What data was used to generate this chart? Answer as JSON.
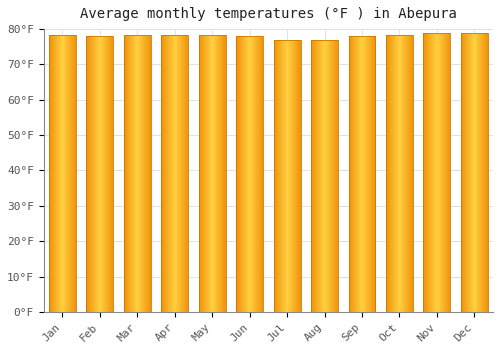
{
  "months": [
    "Jan",
    "Feb",
    "Mar",
    "Apr",
    "May",
    "Jun",
    "Jul",
    "Aug",
    "Sep",
    "Oct",
    "Nov",
    "Dec"
  ],
  "values": [
    78.4,
    78.1,
    78.4,
    78.4,
    78.4,
    77.9,
    77.0,
    77.0,
    77.9,
    78.4,
    78.8,
    78.8
  ],
  "title": "Average monthly temperatures (°F ) in Abepura",
  "ylim": [
    0,
    80
  ],
  "yticks": [
    0,
    10,
    20,
    30,
    40,
    50,
    60,
    70,
    80
  ],
  "bar_color_center": "#FFD040",
  "bar_color_edge": "#F0920A",
  "bar_border_color": "#CC7700",
  "background_color": "#FFFFFF",
  "plot_bg_color": "#FFFFFF",
  "grid_color": "#E0E0E8",
  "title_fontsize": 10,
  "tick_fontsize": 8,
  "bar_width": 0.72
}
